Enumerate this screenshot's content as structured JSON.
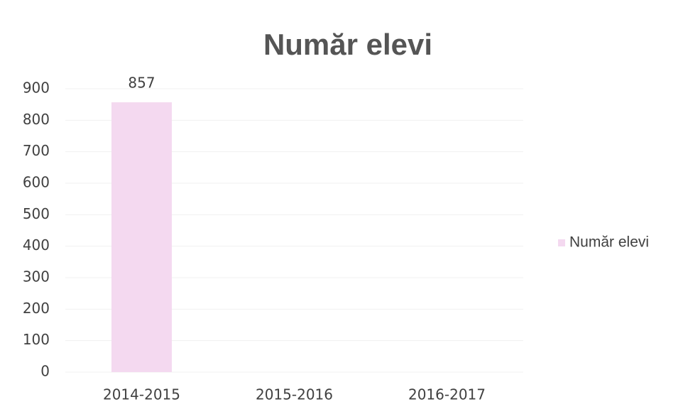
{
  "chart_data": {
    "type": "bar",
    "title": "Număr elevi",
    "categories": [
      "2014-2015",
      "2015-2016",
      "2016-2017"
    ],
    "series": [
      {
        "name": "Număr elevi",
        "color": "#f4d9f0",
        "values": [
          857,
          null,
          null
        ]
      }
    ],
    "ylim": [
      0,
      900
    ],
    "yticks": [
      0,
      100,
      200,
      300,
      400,
      500,
      600,
      700,
      800,
      900
    ],
    "grid": true,
    "legend": "right",
    "data_labels": true
  }
}
